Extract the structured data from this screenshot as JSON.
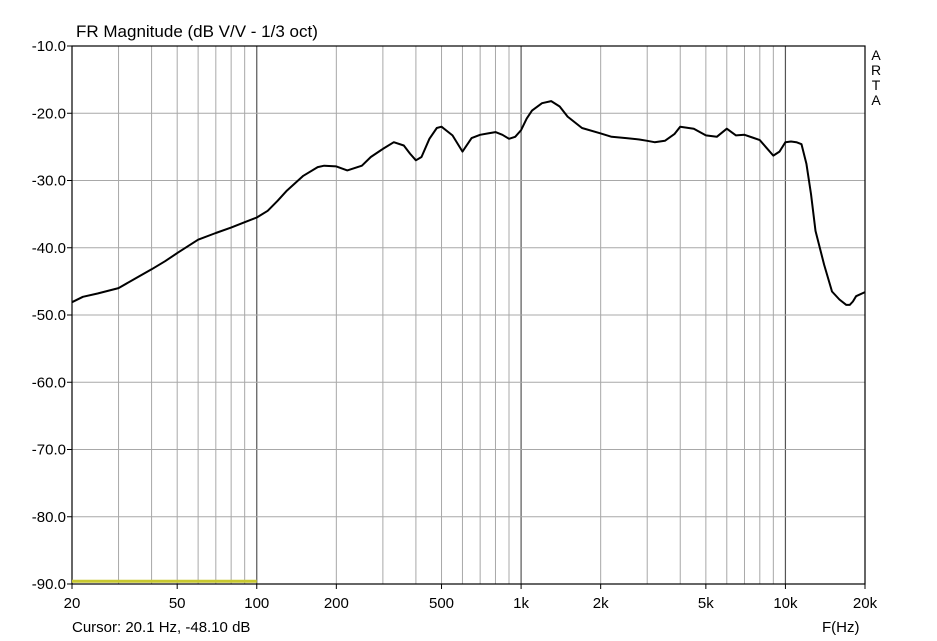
{
  "title": "FR Magnitude (dB V/V - 1/3 oct)",
  "cursor_readout": "Cursor: 20.1 Hz, -48.10 dB",
  "x_unit": "F(Hz)",
  "brand": [
    "A",
    "R",
    "T",
    "A"
  ],
  "colors": {
    "trace": "#000000",
    "grid_minor": "#a8a8a8",
    "grid_major": "#555555",
    "marker": "#c8c830"
  },
  "chart_data": {
    "type": "line",
    "title": "FR Magnitude (dB V/V - 1/3 oct)",
    "xlabel": "F(Hz)",
    "ylabel": "",
    "x_scale": "log",
    "xlim": [
      20,
      20000
    ],
    "ylim": [
      -90,
      -10
    ],
    "grid": true,
    "x_ticks": [
      20,
      50,
      100,
      200,
      500,
      1000,
      2000,
      5000,
      10000,
      20000
    ],
    "x_tick_labels": [
      "20",
      "50",
      "100",
      "200",
      "500",
      "1k",
      "2k",
      "5k",
      "10k",
      "20k"
    ],
    "y_ticks": [
      -10,
      -20,
      -30,
      -40,
      -50,
      -60,
      -70,
      -80,
      -90
    ],
    "y_tick_labels": [
      "-10.0",
      "-20.0",
      "-30.0",
      "-40.0",
      "-50.0",
      "-60.0",
      "-70.0",
      "-80.0",
      "-90.0"
    ],
    "marker_band": {
      "x_from": 20,
      "x_to": 100,
      "y": -89.6
    },
    "series": [
      {
        "x": [
          20,
          22,
          25,
          30,
          35,
          40,
          45,
          50,
          60,
          70,
          80,
          90,
          100,
          110,
          120,
          130,
          150,
          170,
          180,
          200,
          220,
          250,
          270,
          300,
          330,
          360,
          380,
          400,
          420,
          450,
          480,
          500,
          550,
          600,
          650,
          700,
          750,
          800,
          850,
          900,
          950,
          1000,
          1050,
          1100,
          1200,
          1300,
          1400,
          1500,
          1700,
          2000,
          2200,
          2500,
          2800,
          3000,
          3200,
          3500,
          3800,
          4000,
          4500,
          5000,
          5500,
          6000,
          6500,
          7000,
          7500,
          8000,
          8500,
          9000,
          9500,
          10000,
          10500,
          11000,
          11500,
          12000,
          12500,
          13000,
          14000,
          15000,
          16000,
          17000,
          17500,
          18000,
          18500,
          19000,
          20000
        ],
        "y": [
          -48.1,
          -47.3,
          -46.8,
          -46.0,
          -44.5,
          -43.2,
          -42.0,
          -40.8,
          -38.8,
          -37.8,
          -37.0,
          -36.2,
          -35.5,
          -34.5,
          -33.0,
          -31.5,
          -29.3,
          -28.0,
          -27.8,
          -27.9,
          -28.5,
          -27.8,
          -26.5,
          -25.3,
          -24.3,
          -24.8,
          -26.0,
          -27.0,
          -26.5,
          -23.8,
          -22.2,
          -22.0,
          -23.3,
          -25.7,
          -23.7,
          -23.2,
          -23.0,
          -22.8,
          -23.2,
          -23.8,
          -23.5,
          -22.5,
          -20.8,
          -19.6,
          -18.5,
          -18.2,
          -19.0,
          -20.5,
          -22.2,
          -23.0,
          -23.5,
          -23.7,
          -23.9,
          -24.1,
          -24.3,
          -24.1,
          -23.1,
          -22.0,
          -22.3,
          -23.3,
          -23.5,
          -22.3,
          -23.3,
          -23.2,
          -23.6,
          -24.0,
          -25.2,
          -26.3,
          -25.7,
          -24.3,
          -24.2,
          -24.3,
          -24.6,
          -27.5,
          -32.0,
          -37.5,
          -42.5,
          -46.5,
          -47.7,
          -48.5,
          -48.5,
          -48.0,
          -47.2,
          -47.0,
          -46.6
        ]
      }
    ]
  }
}
